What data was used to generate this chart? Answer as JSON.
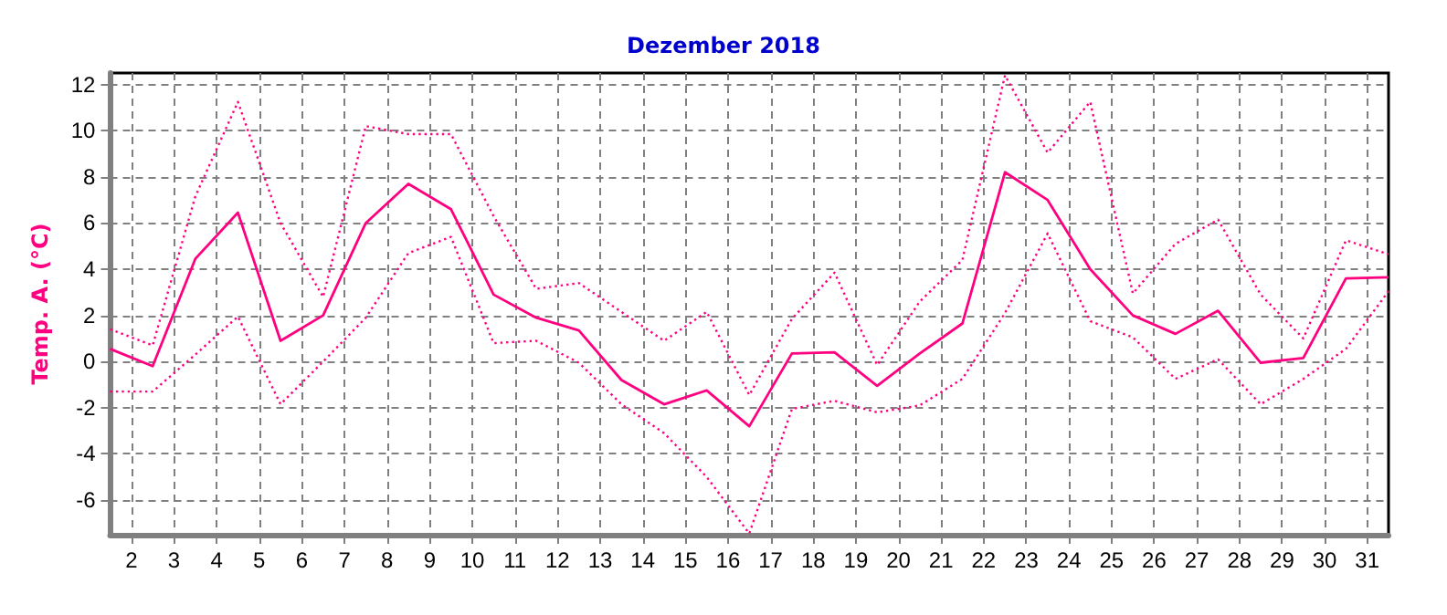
{
  "chart_data": {
    "type": "line",
    "title": "Dezember 2018",
    "ylabel": "Temp. A. (°C)",
    "x": [
      1.5,
      2.5,
      3.5,
      4.5,
      5.5,
      6.5,
      7.5,
      8.5,
      9.5,
      10.5,
      11.5,
      12.5,
      13.5,
      14.5,
      15.5,
      16.5,
      17.5,
      18.5,
      19.5,
      20.5,
      21.5,
      22.5,
      23.5,
      24.5,
      25.5,
      26.5,
      27.5,
      28.5,
      29.5,
      30.5,
      31.5
    ],
    "series": [
      {
        "color": "#ff0080",
        "line_style": "dotted",
        "values": [
          1.4,
          0.7,
          7.15,
          11.25,
          6.0,
          2.8,
          10.2,
          9.85,
          9.85,
          6.3,
          3.15,
          3.4,
          2.15,
          0.9,
          2.15,
          -1.45,
          1.85,
          3.85,
          -0.15,
          2.6,
          4.4,
          12.4,
          9.05,
          11.25,
          2.95,
          5.1,
          6.15,
          2.9,
          1.0,
          5.25,
          4.65
        ]
      },
      {
        "color": "#ff0080",
        "line_style": "solid",
        "values": [
          0.55,
          -0.2,
          4.45,
          6.45,
          0.9,
          2.0,
          6.0,
          7.7,
          6.6,
          2.9,
          1.9,
          1.35,
          -0.8,
          -1.85,
          -1.25,
          -2.8,
          0.35,
          0.4,
          -1.05,
          0.35,
          1.65,
          8.2,
          7.0,
          4.0,
          2.0,
          1.2,
          2.2,
          -0.05,
          0.15,
          3.6,
          3.65
        ]
      },
      {
        "color": "#ff0080",
        "line_style": "dotted",
        "values": [
          -1.3,
          -1.3,
          0.3,
          1.95,
          -1.85,
          0.0,
          1.9,
          4.7,
          5.4,
          0.8,
          0.9,
          -0.05,
          -1.85,
          -3.1,
          -5.0,
          -7.45,
          -2.05,
          -1.7,
          -2.2,
          -1.9,
          -0.75,
          2.1,
          5.55,
          1.75,
          1.05,
          -0.75,
          0.1,
          -1.85,
          -0.75,
          0.55,
          3.05
        ]
      }
    ],
    "xlim": [
      1.5,
      31.5
    ],
    "xticks": [
      2,
      3,
      4,
      5,
      6,
      7,
      8,
      9,
      10,
      11,
      12,
      13,
      14,
      15,
      16,
      17,
      18,
      19,
      20,
      21,
      22,
      23,
      24,
      25,
      26,
      27,
      28,
      29,
      30,
      31
    ],
    "ylim": [
      -7.5,
      12.5
    ],
    "yticks": [
      -6,
      -4,
      -2,
      0,
      2,
      4,
      6,
      8,
      10,
      12
    ],
    "grid": true,
    "marker": "none"
  }
}
